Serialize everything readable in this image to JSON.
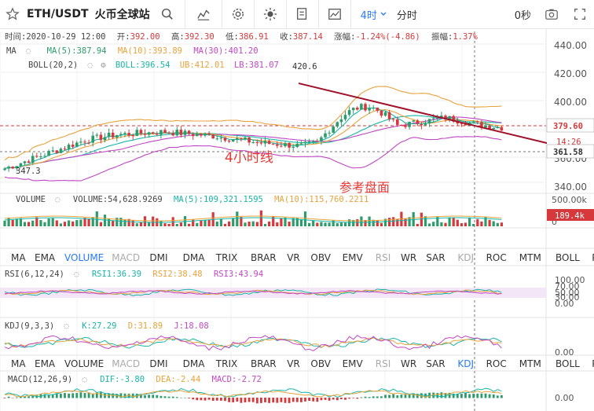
{
  "toolbar": {
    "pair": "ETH/USDT",
    "exchange": "火币全球站",
    "timeframe": "4时",
    "timeframe2": "分时",
    "countdown": "0秒"
  },
  "header": {
    "time": "时间:2020-10-29 12:00",
    "open_label": "开:",
    "open": "392.00",
    "high_label": "高:",
    "high": "392.30",
    "low_label": "低:",
    "low": "386.91",
    "close_label": "收:",
    "close": "387.14",
    "change_label": "涨幅:",
    "change": "-1.24%(-4.86)",
    "amp_label": "振幅:",
    "amp": "1.37%"
  },
  "ma": {
    "name": "MA",
    "ma5": "MA(5):387.94",
    "ma10": "MA(10):393.89",
    "ma30": "MA(30):401.20"
  },
  "boll": {
    "name": "BOLL(20,2)",
    "value": "BOLL:396.54",
    "ub": "UB:412.01",
    "lb": "LB:381.07"
  },
  "price_axis": [
    "440.00",
    "420.00",
    "400.00",
    "380.00",
    "360.00",
    "340.00"
  ],
  "price_tag_current": "379.60",
  "price_tag_time": "14:26",
  "price_tag_low": "361.58",
  "annotations": {
    "high_mark": "420.6",
    "low_mark": "347.3",
    "label_4h": "4小时线",
    "label_ref": "参考盘面"
  },
  "volume": {
    "name": "VOLUME",
    "value": "VOLUME:54,628.9269",
    "ma5": "MA(5):109,321.1595",
    "ma10": "MA(10):115,760.2211",
    "axis_top": "500.00k",
    "axis_bottom": "0",
    "tag": "189.4k"
  },
  "indicator_menu_1": [
    "MA",
    "EMA",
    "VOLUME",
    "MACD",
    "DMI",
    "DMA",
    "TRIX",
    "BRAR",
    "VR",
    "OBV",
    "EMV",
    "RSI",
    "WR",
    "SAR",
    "KDJ",
    "ROC",
    "MTM",
    "BOLL",
    "PSY"
  ],
  "indicator_menu_2": [
    "MA",
    "EMA",
    "VOLUME",
    "MACD",
    "DMI",
    "DMA",
    "TRIX",
    "BRAR",
    "VR",
    "OBV",
    "EMV",
    "RSI",
    "WR",
    "SAR",
    "KDJ",
    "ROC",
    "MTM",
    "BOLL",
    "PSY"
  ],
  "rsi": {
    "name": "RSI(6,12,24)",
    "rsi1": "RSI1:36.39",
    "rsi2": "RSI2:38.48",
    "rsi3": "RSI3:43.94",
    "axis": [
      "100.00",
      "70.00",
      "50.00",
      "30.00",
      "0.00"
    ]
  },
  "kdj": {
    "name": "KDJ(9,3,3)",
    "k": "K:27.29",
    "d": "D:31.89",
    "j": "J:18.08",
    "axis": "0.00"
  },
  "macd": {
    "name": "MACD(12,26,9)",
    "dif": "DIF:-3.80",
    "dea": "DEA:-2.44",
    "macd": "MACD:-2.72",
    "axis": "0.00"
  },
  "colors": {
    "up": "#2e9b6a",
    "down": "#d6393b",
    "ma5": "#e8a33d",
    "ma10": "#19b6a8",
    "ma30": "#c048c4",
    "accent": "#2979ff",
    "trendline": "#a0112a",
    "annotation": "#e53935"
  }
}
